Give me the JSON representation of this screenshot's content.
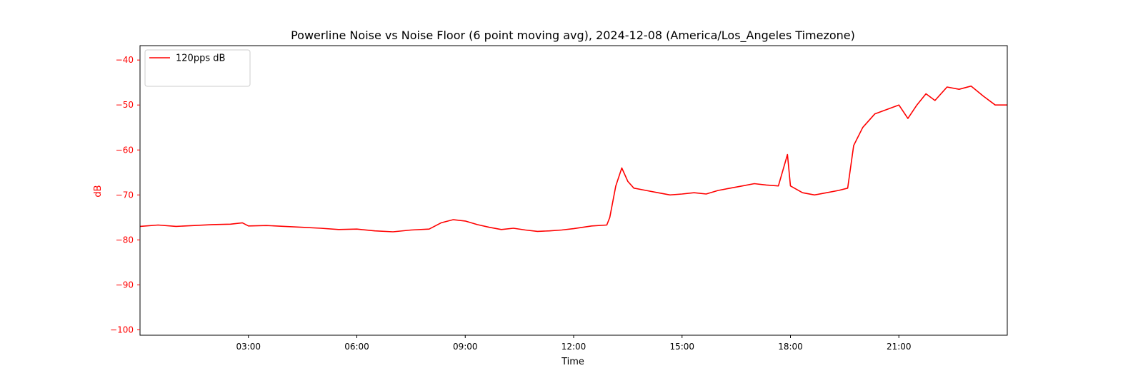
{
  "chart_data": {
    "type": "line",
    "title": "Powerline Noise vs Noise Floor (6 point moving avg), 2024-12-08 (America/Los_Angeles Timezone)",
    "xlabel": "Time",
    "ylabel": "dB",
    "xlim": [
      "00:00",
      "24:00"
    ],
    "ylim": [
      -101.2,
      -36.8
    ],
    "x_ticks": [
      "03:00",
      "06:00",
      "09:00",
      "12:00",
      "15:00",
      "18:00",
      "21:00"
    ],
    "y_ticks": [
      -40,
      -50,
      -60,
      -70,
      -80,
      -90,
      -100
    ],
    "y_tick_labels": [
      "−40",
      "−50",
      "−60",
      "−70",
      "−80",
      "−90",
      "−100"
    ],
    "grid": false,
    "legend_position": "upper-left",
    "series": [
      {
        "name": "120pps dB",
        "color": "#ff0000",
        "style": "solid",
        "points": [
          [
            "00:00",
            -77.0
          ],
          [
            "00:30",
            -76.7
          ],
          [
            "01:00",
            -77.0
          ],
          [
            "01:30",
            -76.8
          ],
          [
            "02:00",
            -76.6
          ],
          [
            "02:30",
            -76.5
          ],
          [
            "02:50",
            -76.2
          ],
          [
            "03:00",
            -76.9
          ],
          [
            "03:30",
            -76.8
          ],
          [
            "04:00",
            -77.0
          ],
          [
            "04:30",
            -77.2
          ],
          [
            "05:00",
            -77.4
          ],
          [
            "05:30",
            -77.7
          ],
          [
            "06:00",
            -77.6
          ],
          [
            "06:30",
            -78.0
          ],
          [
            "07:00",
            -78.2
          ],
          [
            "07:30",
            -77.8
          ],
          [
            "08:00",
            -77.6
          ],
          [
            "08:20",
            -76.2
          ],
          [
            "08:40",
            -75.5
          ],
          [
            "09:00",
            -75.8
          ],
          [
            "09:20",
            -76.6
          ],
          [
            "09:40",
            -77.2
          ],
          [
            "10:00",
            -77.7
          ],
          [
            "10:20",
            -77.4
          ],
          [
            "10:40",
            -77.8
          ],
          [
            "11:00",
            -78.1
          ],
          [
            "11:20",
            -78.0
          ],
          [
            "11:40",
            -77.8
          ],
          [
            "12:00",
            -77.5
          ],
          [
            "12:30",
            -76.9
          ],
          [
            "12:55",
            -76.7
          ],
          [
            "13:00",
            -75.0
          ],
          [
            "13:10",
            -68.0
          ],
          [
            "13:20",
            -64.0
          ],
          [
            "13:30",
            -67.0
          ],
          [
            "13:40",
            -68.5
          ],
          [
            "14:00",
            -69.0
          ],
          [
            "14:20",
            -69.5
          ],
          [
            "14:40",
            -70.0
          ],
          [
            "15:00",
            -69.8
          ],
          [
            "15:20",
            -69.5
          ],
          [
            "15:40",
            -69.8
          ],
          [
            "16:00",
            -69.0
          ],
          [
            "16:20",
            -68.5
          ],
          [
            "16:40",
            -68.0
          ],
          [
            "17:00",
            -67.5
          ],
          [
            "17:20",
            -67.8
          ],
          [
            "17:40",
            -68.0
          ],
          [
            "17:55",
            -61.0
          ],
          [
            "18:00",
            -68.0
          ],
          [
            "18:20",
            -69.5
          ],
          [
            "18:40",
            -70.0
          ],
          [
            "19:00",
            -69.5
          ],
          [
            "19:20",
            -69.0
          ],
          [
            "19:35",
            -68.5
          ],
          [
            "19:45",
            -59.0
          ],
          [
            "20:00",
            -55.0
          ],
          [
            "20:20",
            -52.0
          ],
          [
            "20:40",
            -51.0
          ],
          [
            "21:00",
            -50.0
          ],
          [
            "21:15",
            -53.0
          ],
          [
            "21:30",
            -50.0
          ],
          [
            "21:45",
            -47.5
          ],
          [
            "22:00",
            -49.0
          ],
          [
            "22:20",
            -46.0
          ],
          [
            "22:40",
            -46.5
          ],
          [
            "23:00",
            -45.8
          ],
          [
            "23:20",
            -48.0
          ],
          [
            "23:40",
            -50.0
          ],
          [
            "24:00",
            -50.0
          ]
        ]
      }
    ]
  }
}
